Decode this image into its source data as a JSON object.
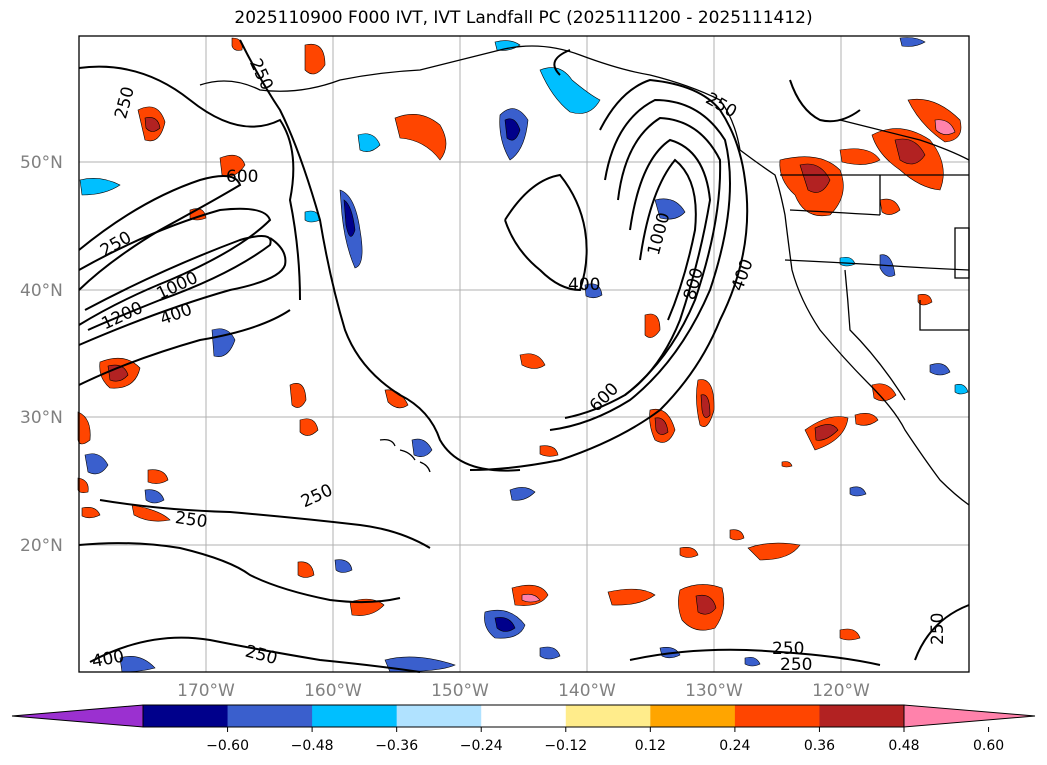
{
  "title": "2025110900 F000 IVT, IVT Landfall PC (2025111200 - 2025111412)",
  "lat_labels": [
    "50°N",
    "40°N",
    "30°N",
    "20°N"
  ],
  "lon_labels": [
    "170°W",
    "160°W",
    "150°W",
    "140°W",
    "130°W",
    "120°W"
  ],
  "contour_labels": [
    {
      "text": "250"
    },
    {
      "text": "250"
    },
    {
      "text": "250"
    },
    {
      "text": "600"
    },
    {
      "text": "1200"
    },
    {
      "text": "1000"
    },
    {
      "text": "400"
    },
    {
      "text": "400"
    },
    {
      "text": "1000"
    },
    {
      "text": "800"
    },
    {
      "text": "400"
    },
    {
      "text": "600"
    },
    {
      "text": "250"
    },
    {
      "text": "250"
    },
    {
      "text": "250"
    },
    {
      "text": "400"
    },
    {
      "text": "250"
    },
    {
      "text": "250"
    },
    {
      "text": "250"
    },
    {
      "text": "250"
    }
  ],
  "colorbar": {
    "colors": [
      "#9b30d0",
      "#00008b",
      "#3a5fcd",
      "#00bfff",
      "#b0e2ff",
      "#ffffff",
      "#ffec8b",
      "#ffa500",
      "#ff4500",
      "#b22222",
      "#ff82ab"
    ],
    "ticks": [
      "−0.60",
      "−0.48",
      "−0.36",
      "−0.24",
      "−0.12",
      "0.12",
      "0.24",
      "0.36",
      "0.48",
      "0.60"
    ]
  },
  "colors": {
    "grid": "#b0b0b0",
    "contour": "#000000",
    "coast": "#000000"
  }
}
